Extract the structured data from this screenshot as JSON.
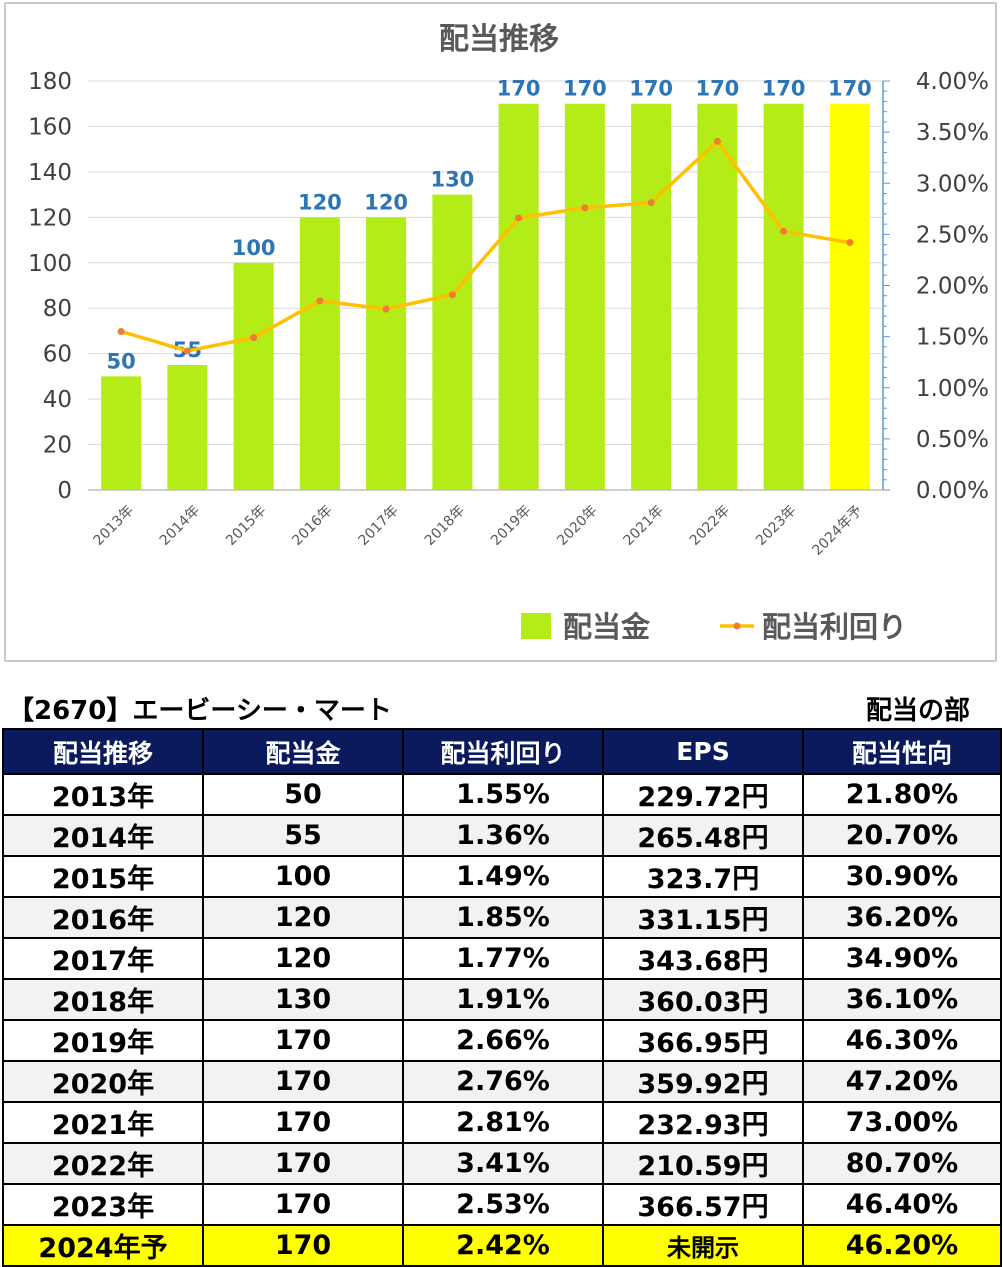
{
  "colors": {
    "bar": "#b3ec17",
    "bar_forecast": "#ffff00",
    "yield_line": "#ffc000",
    "yield_marker": "#ed7d31",
    "data_label": "#2e75b6",
    "header_bg": "#0a1a5c"
  },
  "chart_data": {
    "type": "bar",
    "title": "配当推移",
    "categories": [
      "2013年",
      "2014年",
      "2015年",
      "2016年",
      "2017年",
      "2018年",
      "2019年",
      "2020年",
      "2021年",
      "2022年",
      "2023年",
      "2024年予"
    ],
    "series": [
      {
        "name": "配当金",
        "type": "bar",
        "axis": "left",
        "values": [
          50,
          55,
          100,
          120,
          120,
          130,
          170,
          170,
          170,
          170,
          170,
          170
        ],
        "highlight_last": true
      },
      {
        "name": "配当利回り",
        "type": "line",
        "axis": "right",
        "values": [
          1.55,
          1.36,
          1.49,
          1.85,
          1.77,
          1.91,
          2.66,
          2.76,
          2.81,
          3.41,
          2.53,
          2.42
        ]
      }
    ],
    "data_labels": [
      "50",
      "55",
      "100",
      "120",
      "120",
      "130",
      "170",
      "170",
      "170",
      "170",
      "170",
      "170"
    ],
    "y_left": {
      "min": 0,
      "max": 180,
      "step": 20,
      "ticks": [
        "0",
        "20",
        "40",
        "60",
        "80",
        "100",
        "120",
        "140",
        "160",
        "180"
      ]
    },
    "y_right": {
      "min": 0,
      "max": 4,
      "step": 0.5,
      "ticks": [
        "0.00%",
        "0.50%",
        "1.00%",
        "1.50%",
        "2.00%",
        "2.50%",
        "3.00%",
        "3.50%",
        "4.00%"
      ]
    },
    "grid": true,
    "legend_position": "bottom-right"
  },
  "table": {
    "title": "【2670】エービーシー・マート",
    "section": "配当の部",
    "headers": [
      "配当推移",
      "配当金",
      "配当利回り",
      "EPS",
      "配当性向"
    ],
    "rows": [
      [
        "2013年",
        "50",
        "1.55%",
        "229.72円",
        "21.80%"
      ],
      [
        "2014年",
        "55",
        "1.36%",
        "265.48円",
        "20.70%"
      ],
      [
        "2015年",
        "100",
        "1.49%",
        "323.7円",
        "30.90%"
      ],
      [
        "2016年",
        "120",
        "1.85%",
        "331.15円",
        "36.20%"
      ],
      [
        "2017年",
        "120",
        "1.77%",
        "343.68円",
        "34.90%"
      ],
      [
        "2018年",
        "130",
        "1.91%",
        "360.03円",
        "36.10%"
      ],
      [
        "2019年",
        "170",
        "2.66%",
        "366.95円",
        "46.30%"
      ],
      [
        "2020年",
        "170",
        "2.76%",
        "359.92円",
        "47.20%"
      ],
      [
        "2021年",
        "170",
        "2.81%",
        "232.93円",
        "73.00%"
      ],
      [
        "2022年",
        "170",
        "3.41%",
        "210.59円",
        "80.70%"
      ],
      [
        "2023年",
        "170",
        "2.53%",
        "366.57円",
        "46.40%"
      ],
      [
        "2024年予",
        "170",
        "2.42%",
        "未開示",
        "46.20%"
      ]
    ]
  }
}
